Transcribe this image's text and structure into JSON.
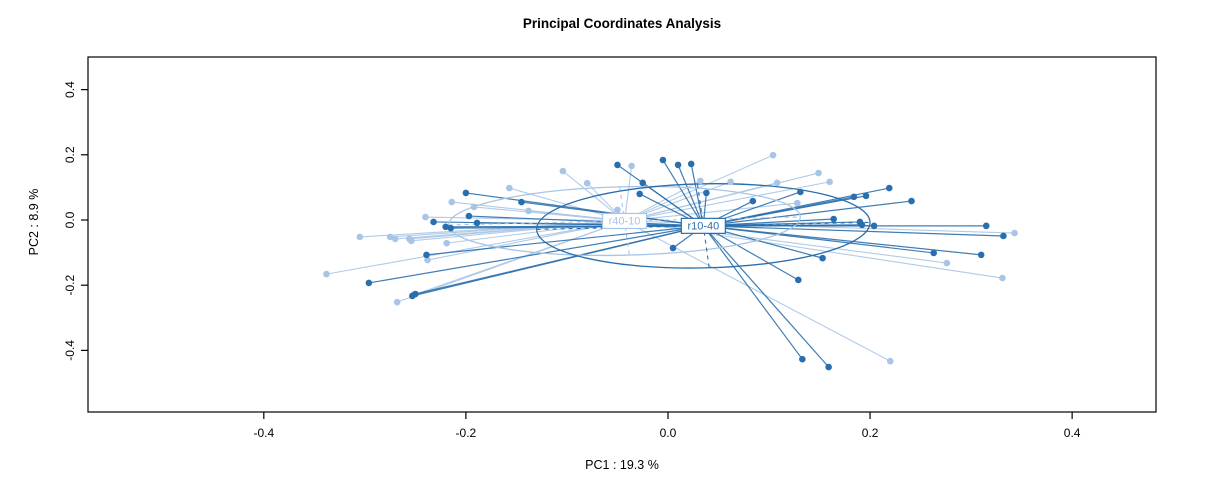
{
  "title": "Principal Coordinates Analysis",
  "colors": {
    "light_group": "#a9c5e5",
    "dark_group": "#2a6fad",
    "axis": "#000000",
    "background": "#ffffff",
    "label_box_fill": "#ffffff"
  },
  "chart_data": {
    "type": "scatter",
    "title": "Principal Coordinates Analysis",
    "xlabel": "PC1 : 19.3 %",
    "ylabel": "PC2 : 8.9 %",
    "xlim": [
      -0.574,
      0.483
    ],
    "ylim": [
      -0.589,
      0.5
    ],
    "grid": false,
    "legend_position": "none",
    "xticks": [
      {
        "v": -0.4,
        "label": "-0.4"
      },
      {
        "v": -0.2,
        "label": "-0.2"
      },
      {
        "v": 0.0,
        "label": "0.0"
      },
      {
        "v": 0.2,
        "label": "0.2"
      },
      {
        "v": 0.4,
        "label": "0.4"
      }
    ],
    "yticks": [
      {
        "v": -0.4,
        "label": "-0.4"
      },
      {
        "v": -0.2,
        "label": "-0.2"
      },
      {
        "v": 0.0,
        "label": "0.0"
      },
      {
        "v": 0.2,
        "label": "0.2"
      },
      {
        "v": 0.4,
        "label": "0.4"
      }
    ],
    "groups": [
      {
        "name": "r40-10",
        "color": "#a9c5e5",
        "centroid": [
          -0.043,
          -0.003
        ],
        "ellipse": {
          "rx": 0.174,
          "ry": 0.105,
          "tilt": -1.3,
          "minor_tilt": -8
        },
        "points": [
          [
            -0.338,
            -0.166
          ],
          [
            -0.305,
            -0.052
          ],
          [
            -0.275,
            -0.052
          ],
          [
            -0.27,
            -0.058
          ],
          [
            -0.256,
            -0.058
          ],
          [
            -0.268,
            -0.252
          ],
          [
            -0.252,
            -0.23
          ],
          [
            -0.24,
            0.009
          ],
          [
            -0.254,
            -0.064
          ],
          [
            -0.219,
            -0.071
          ],
          [
            -0.214,
            0.055
          ],
          [
            -0.192,
            0.04
          ],
          [
            -0.157,
            0.098
          ],
          [
            -0.138,
            0.028
          ],
          [
            -0.104,
            0.15
          ],
          [
            -0.08,
            0.113
          ],
          [
            -0.05,
            0.031
          ],
          [
            -0.036,
            0.166
          ],
          [
            0.032,
            0.12
          ],
          [
            0.062,
            0.117
          ],
          [
            0.104,
            0.199
          ],
          [
            0.108,
            0.114
          ],
          [
            0.128,
            0.052
          ],
          [
            0.149,
            0.144
          ],
          [
            0.16,
            0.117
          ],
          [
            0.22,
            -0.433
          ],
          [
            0.276,
            -0.132
          ],
          [
            0.331,
            -0.178
          ],
          [
            0.343,
            -0.04
          ],
          [
            -0.238,
            -0.123
          ]
        ]
      },
      {
        "name": "r10-40",
        "color": "#2a6fad",
        "centroid": [
          0.035,
          -0.018
        ],
        "ellipse": {
          "rx": 0.165,
          "ry": 0.129,
          "tilt": -1.2,
          "minor_tilt": -8
        },
        "points": [
          [
            -0.296,
            -0.193
          ],
          [
            -0.253,
            -0.233
          ],
          [
            -0.25,
            -0.227
          ],
          [
            -0.239,
            -0.107
          ],
          [
            -0.232,
            -0.006
          ],
          [
            -0.22,
            -0.021
          ],
          [
            -0.215,
            -0.025
          ],
          [
            -0.2,
            0.083
          ],
          [
            -0.197,
            0.012
          ],
          [
            -0.189,
            -0.009
          ],
          [
            -0.145,
            0.055
          ],
          [
            -0.05,
            0.169
          ],
          [
            -0.028,
            0.08
          ],
          [
            -0.025,
            0.114
          ],
          [
            -0.005,
            0.184
          ],
          [
            0.01,
            0.169
          ],
          [
            0.023,
            0.172
          ],
          [
            0.038,
            0.083
          ],
          [
            0.005,
            -0.086
          ],
          [
            0.084,
            0.058
          ],
          [
            0.131,
            0.086
          ],
          [
            0.153,
            -0.117
          ],
          [
            0.129,
            -0.184
          ],
          [
            0.133,
            -0.427
          ],
          [
            0.159,
            -0.451
          ],
          [
            0.164,
            0.003
          ],
          [
            0.184,
            0.071
          ],
          [
            0.19,
            -0.006
          ],
          [
            0.192,
            -0.015
          ],
          [
            0.196,
            0.074
          ],
          [
            0.204,
            -0.018
          ],
          [
            0.219,
            0.098
          ],
          [
            0.241,
            0.058
          ],
          [
            0.263,
            -0.101
          ],
          [
            0.31,
            -0.107
          ],
          [
            0.315,
            -0.018
          ],
          [
            0.332,
            -0.049
          ]
        ]
      }
    ]
  }
}
